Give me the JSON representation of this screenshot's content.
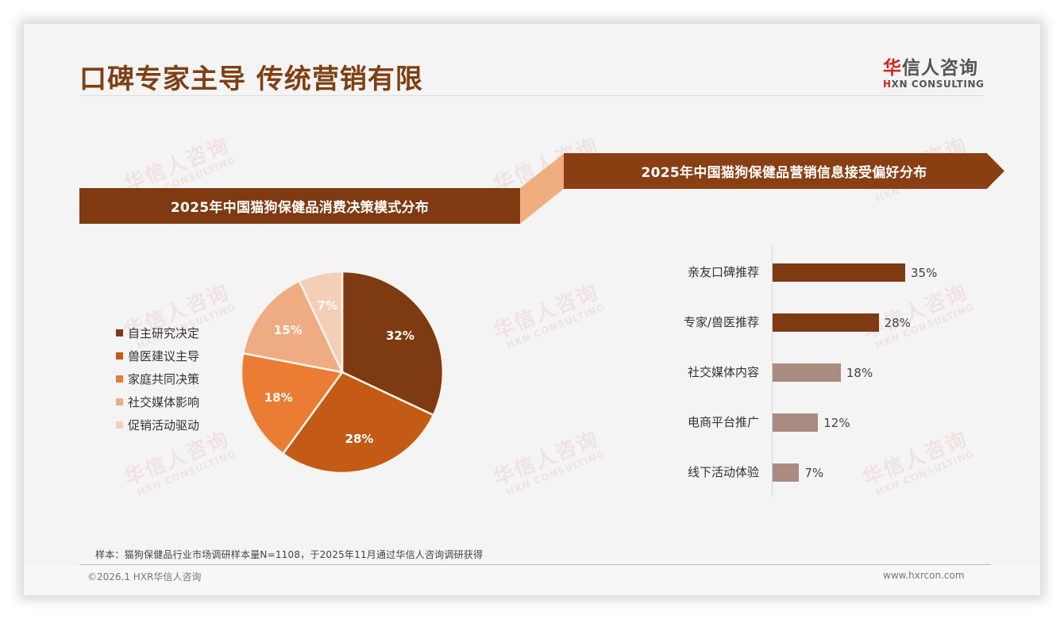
{
  "header": {
    "title": "口碑专家主导 传统营销有限",
    "logo_cn_first": "华",
    "logo_cn_rest": "信人咨询",
    "logo_en_first": "H",
    "logo_en_rest": "XN CONSULTING"
  },
  "watermark": {
    "cn": "华信人咨询",
    "en": "HXN CONSULTING"
  },
  "left_panel": {
    "banner_title": "2025年中国猫狗保健品消费决策模式分布"
  },
  "right_panel": {
    "banner_title": "2025年中国猫狗保健品营销信息接受偏好分布"
  },
  "colors": {
    "title": "#7f3f13",
    "banner": "#7f3a12",
    "connector": "#f0ad80",
    "bar_dark": "#7e3a10",
    "bar_light": "#a98b80",
    "pie": [
      "#7e3a10",
      "#c35a16",
      "#ea7c33",
      "#efac82",
      "#f3cfb8"
    ]
  },
  "chart_data": [
    {
      "type": "pie",
      "title": "2025年中国猫狗保健品消费决策模式分布",
      "categories": [
        "自主研究决定",
        "兽医建议主导",
        "家庭共同决策",
        "社交媒体影响",
        "促销活动驱动"
      ],
      "values": [
        32,
        28,
        18,
        15,
        7
      ],
      "labels": [
        "32%",
        "28%",
        "18%",
        "15%",
        "7%"
      ],
      "colors": [
        "#7e3a10",
        "#c35a16",
        "#ea7c33",
        "#efac82",
        "#f3cfb8"
      ],
      "legend_position": "left",
      "start_angle": "12 o'clock, clockwise"
    },
    {
      "type": "bar",
      "orientation": "horizontal",
      "title": "2025年中国猫狗保健品营销信息接受偏好分布",
      "categories": [
        "亲友口碑推荐",
        "专家/兽医推荐",
        "社交媒体内容",
        "电商平台推广",
        "线下活动体验"
      ],
      "values": [
        35,
        28,
        18,
        12,
        7
      ],
      "labels": [
        "35%",
        "28%",
        "18%",
        "12%",
        "7%"
      ],
      "colors": [
        "#7e3a10",
        "#7e3a10",
        "#a98b80",
        "#a98b80",
        "#a98b80"
      ],
      "xlabel": "",
      "ylabel": "",
      "grid": false
    }
  ],
  "footer": {
    "note": "样本：猫狗保健品行业市场调研样本量N=1108，于2025年11月通过华信人咨询调研获得",
    "copyright": "©2026.1 HXR华信人咨询",
    "website": "www.hxrcon.com"
  }
}
